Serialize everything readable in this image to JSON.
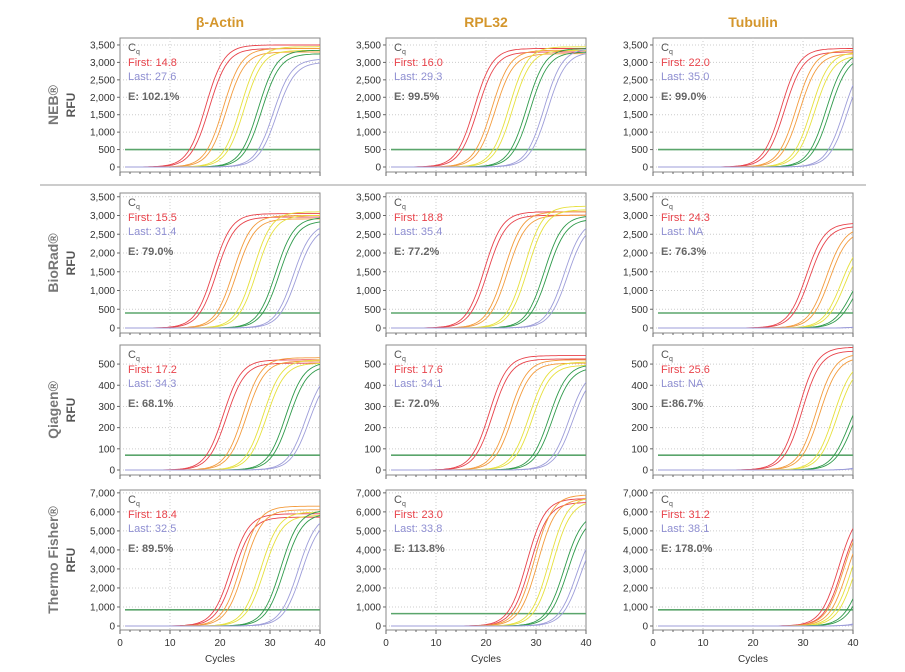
{
  "chart_data": {
    "type": "line",
    "columns": [
      "β-Actin",
      "RPL32",
      "Tubulin"
    ],
    "rows": [
      "NEB®",
      "BioRad®",
      "Qiagen®",
      "Thermo Fisher®"
    ],
    "xlabel": "Cycles",
    "ylabel": "RFU",
    "xlim": [
      0,
      40
    ],
    "xticks": [
      0,
      10,
      20,
      30,
      40
    ],
    "grid": true,
    "colors": {
      "dil1": "#e8434b",
      "dil2": "#f39b3c",
      "dil3": "#e6e03c",
      "dil4": "#2f9a4b",
      "dil5": "#9d9dd9",
      "threshold": "#5aa56b",
      "first": "#e8434b",
      "last": "#8f8fd2",
      "cq": "#555555",
      "title": "#d4962c"
    },
    "row_axes": [
      {
        "ylim": [
          0,
          3700
        ],
        "yticks": [
          0,
          500,
          1000,
          1500,
          2000,
          2500,
          3000,
          3500
        ]
      },
      {
        "ylim": [
          0,
          3600
        ],
        "yticks": [
          0,
          500,
          1000,
          1500,
          2000,
          2500,
          3000,
          3500
        ]
      },
      {
        "ylim": [
          0,
          590
        ],
        "yticks": [
          0,
          100,
          200,
          300,
          400,
          500
        ]
      },
      {
        "ylim": [
          0,
          7150
        ],
        "yticks": [
          0,
          1000,
          2000,
          3000,
          4000,
          5000,
          6000,
          7000
        ]
      }
    ],
    "panels": [
      [
        {
          "cq_label": "Cq",
          "first": "First: 14.8",
          "last": "Last: 27.6",
          "efficiency": "E: 102.1%",
          "threshold": 500,
          "midpoints": [
            17.5,
            21,
            24.5,
            28,
            31
          ],
          "plateaus": [
            3500,
            3400,
            3450,
            3350,
            3100
          ]
        },
        {
          "cq_label": "Cq",
          "first": "First: 16.0",
          "last": "Last: 29.3",
          "efficiency": "E: 99.5%",
          "threshold": 500,
          "midpoints": [
            18,
            21.5,
            25,
            28.5,
            32
          ],
          "plateaus": [
            3400,
            3350,
            3450,
            3400,
            3400
          ]
        },
        {
          "cq_label": "Cq",
          "first": "First: 22.0",
          "last": "Last: 35.0",
          "efficiency": "E: 99.0%",
          "threshold": 500,
          "midpoints": [
            26,
            29,
            32,
            35,
            38.5
          ],
          "plateaus": [
            3400,
            3350,
            3300,
            3300,
            3200
          ]
        }
      ],
      [
        {
          "cq_label": "Cq",
          "first": "First: 15.5",
          "last": "Last: 31.4",
          "efficiency": "E: 79.0%",
          "threshold": 400,
          "midpoints": [
            19,
            23,
            27,
            31.5,
            35
          ],
          "plateaus": [
            3050,
            3000,
            3100,
            2950,
            2800
          ]
        },
        {
          "cq_label": "Cq",
          "first": "First: 18.8",
          "last": "Last: 35.4",
          "efficiency": "E: 77.2%",
          "threshold": 400,
          "midpoints": [
            20,
            24,
            28,
            32,
            36
          ],
          "plateaus": [
            3100,
            3100,
            3250,
            3000,
            2900
          ]
        },
        {
          "cq_label": "Cq",
          "first": "First: 24.3",
          "last": "Last: NA",
          "efficiency": "E: 76.3%",
          "threshold": 400,
          "midpoints": [
            31,
            35,
            38,
            40,
            46
          ],
          "plateaus": [
            2800,
            2700,
            2400,
            1800,
            500
          ]
        }
      ],
      [
        {
          "cq_label": "Cq",
          "first": "First: 17.2",
          "last": "Last: 34.3",
          "efficiency": "E: 68.1%",
          "threshold": 70,
          "midpoints": [
            21,
            25,
            29,
            33.5,
            37.5
          ],
          "plateaus": [
            520,
            530,
            520,
            510,
            480
          ]
        },
        {
          "cq_label": "Cq",
          "first": "First: 17.6",
          "last": "Last: 34.1",
          "efficiency": "E: 72.0%",
          "threshold": 70,
          "midpoints": [
            21,
            25,
            29,
            33,
            37
          ],
          "plateaus": [
            540,
            520,
            510,
            500,
            480
          ]
        },
        {
          "cq_label": "Cq",
          "first": "First: 25.6",
          "last": "Last: NA",
          "efficiency": "E:86.7%",
          "threshold": 70,
          "midpoints": [
            29.5,
            33,
            36.5,
            39.5,
            45
          ],
          "plateaus": [
            580,
            550,
            520,
            420,
            120
          ]
        }
      ],
      [
        {
          "cq_label": "Cq",
          "first": "First: 18.4",
          "last": "Last: 32.5",
          "efficiency": "E: 89.5%",
          "threshold": 850,
          "midpoints": [
            22.5,
            24.5,
            28.5,
            32.5,
            36
          ],
          "plateaus": [
            5900,
            6300,
            6000,
            6100,
            5900
          ]
        },
        {
          "cq_label": "Cq",
          "first": "First: 23.0",
          "last": "Last: 33.8",
          "efficiency": "E: 113.8%",
          "threshold": 650,
          "midpoints": [
            28.5,
            30,
            33,
            36,
            38.5
          ],
          "plateaus": [
            6700,
            6900,
            6800,
            6000,
            5500
          ]
        },
        {
          "cq_label": "Cq",
          "first": "First: 31.2",
          "last": "Last: 38.1",
          "efficiency": "E: 178.0%",
          "threshold": 850,
          "midpoints": [
            37.5,
            38.5,
            40,
            42,
            46
          ],
          "plateaus": [
            6200,
            6000,
            5800,
            5000,
            2500
          ]
        }
      ]
    ]
  }
}
